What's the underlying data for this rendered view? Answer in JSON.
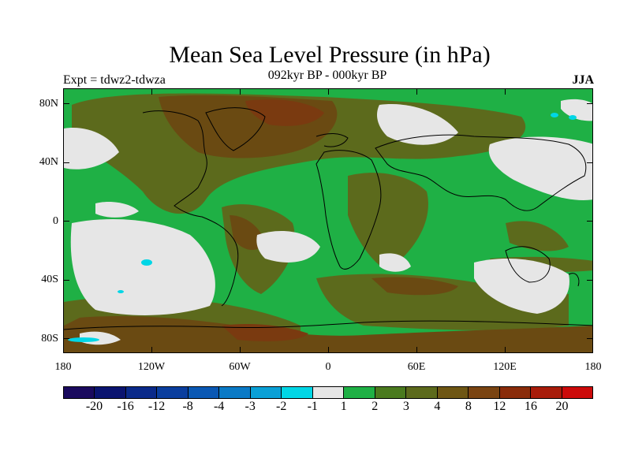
{
  "title": "Mean Sea Level Pressure (in hPa)",
  "subtitle": "092kyr BP - 000kyr BP",
  "experiment": "Expt = tdwz2-tdwza",
  "season": "JJA",
  "lat_labels": [
    "80N",
    "40N",
    "0",
    "40S",
    "80S"
  ],
  "lon_labels": [
    "180",
    "120W",
    "60W",
    "0",
    "60E",
    "120E",
    "180"
  ],
  "colors": {
    "ocean_base": "#1fb045",
    "land_base": "#5c6a1c",
    "high_anomaly": "#6a4a12",
    "very_high_anomaly": "#7a3a10",
    "low_anomaly": "#e6e6e6",
    "negative_anomaly": "#00d6e6",
    "coastline": "#000000"
  },
  "colorbar": {
    "colors": [
      "#1a0a5e",
      "#0a1470",
      "#0a2a8a",
      "#0a3e9e",
      "#0a58b4",
      "#0a7ac6",
      "#0aa0d6",
      "#00d6e6",
      "#e6e6e6",
      "#1fb045",
      "#4a7a1e",
      "#5c6a1c",
      "#6e5614",
      "#7a4412",
      "#8a2c0a",
      "#a81c0a",
      "#cc0a0a"
    ],
    "labels": [
      "-20",
      "-16",
      "-12",
      "-8",
      "-4",
      "-3",
      "-2",
      "-1",
      "1",
      "2",
      "3",
      "4",
      "8",
      "12",
      "16",
      "20"
    ]
  }
}
